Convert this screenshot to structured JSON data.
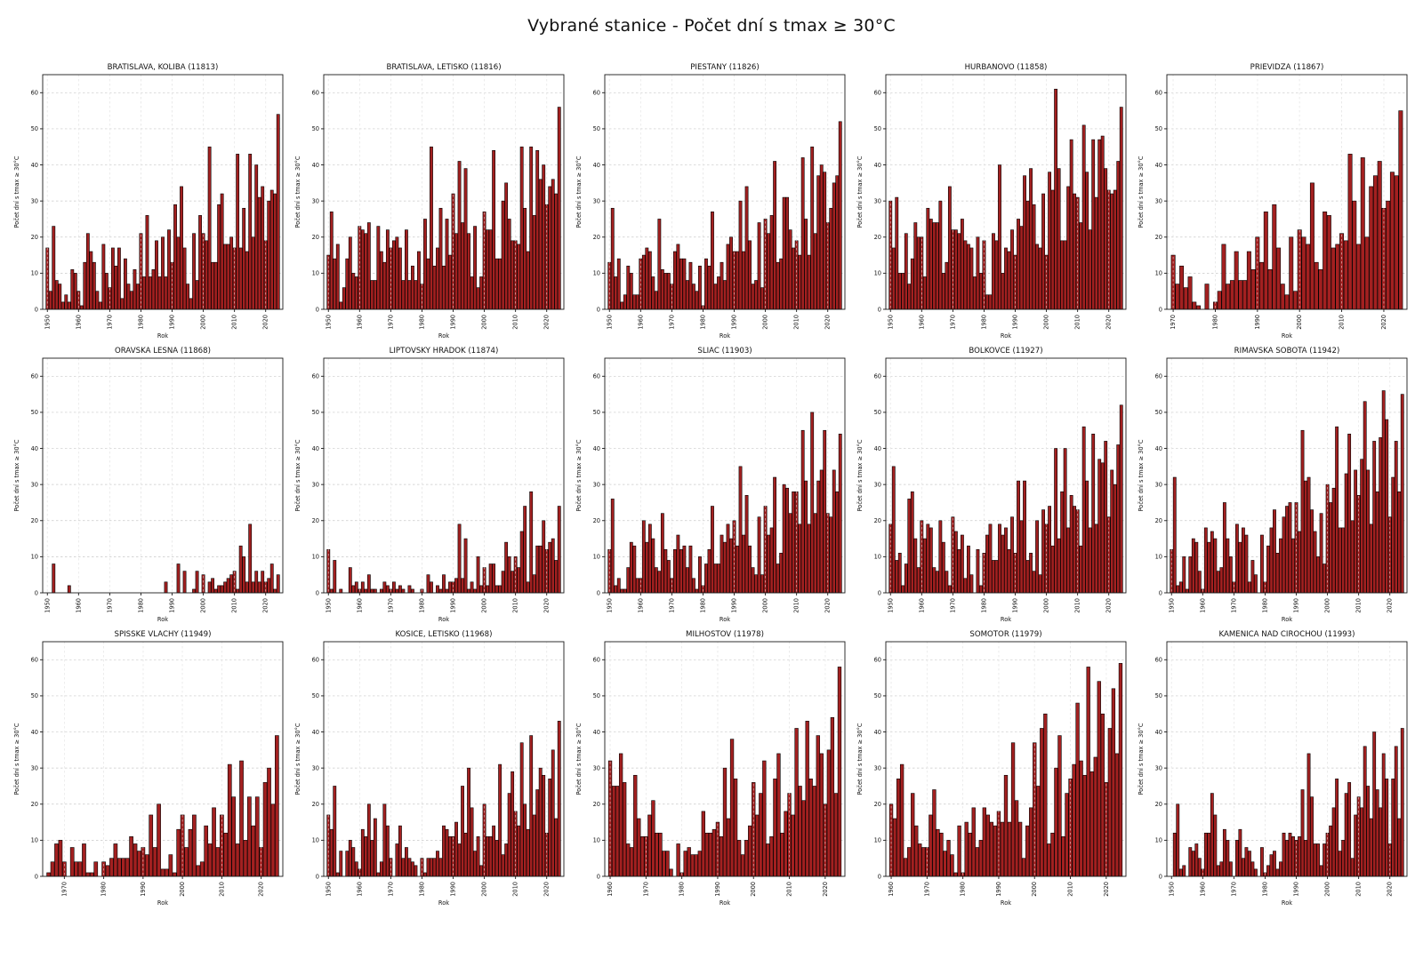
{
  "title": "Vybrané stanice - Počet dní s tmax ≥ 30°C",
  "chart_common": {
    "type": "bar",
    "xlabel": "Rok",
    "ylabel": "Počet dní s tmax ≥ 30°C",
    "yticks": [
      0,
      10,
      20,
      30,
      40,
      50,
      60
    ],
    "ylim": [
      0,
      65
    ],
    "grid": "dashed",
    "bar_color": "#a32020",
    "bar_edge_color": "#000000",
    "x_tick_step": 10,
    "x_tick_end": 2020
  },
  "chart_data": [
    {
      "type": "bar",
      "title": "BRATISLAVA, KOLIBA (11813)",
      "start_year": 1950,
      "values": [
        17,
        5,
        23,
        8,
        7,
        2,
        4,
        2,
        11,
        10,
        5,
        1,
        13,
        21,
        16,
        13,
        5,
        2,
        18,
        10,
        6,
        17,
        12,
        17,
        3,
        14,
        7,
        5,
        11,
        7,
        21,
        9,
        26,
        9,
        11,
        19,
        9,
        20,
        9,
        22,
        13,
        29,
        20,
        34,
        17,
        7,
        3,
        21,
        8,
        26,
        21,
        19,
        45,
        13,
        13,
        29,
        32,
        18,
        18,
        20,
        17,
        43,
        17,
        28,
        16,
        43,
        20,
        40,
        31,
        34,
        19,
        30,
        33,
        32,
        54
      ]
    },
    {
      "type": "bar",
      "title": "BRATISLAVA, LETISKO (11816)",
      "start_year": 1950,
      "values": [
        15,
        27,
        14,
        18,
        2,
        6,
        14,
        20,
        10,
        9,
        23,
        22,
        21,
        24,
        8,
        8,
        23,
        16,
        13,
        22,
        17,
        19,
        20,
        17,
        8,
        22,
        8,
        12,
        8,
        16,
        7,
        25,
        14,
        45,
        12,
        17,
        28,
        12,
        25,
        15,
        32,
        21,
        41,
        24,
        39,
        21,
        9,
        23,
        6,
        9,
        27,
        22,
        22,
        44,
        14,
        14,
        30,
        35,
        25,
        19,
        19,
        18,
        45,
        28,
        16,
        45,
        26,
        44,
        36,
        40,
        29,
        34,
        36,
        32,
        56
      ]
    },
    {
      "type": "bar",
      "title": "PIESTANY (11826)",
      "start_year": 1950,
      "values": [
        13,
        28,
        9,
        14,
        2,
        4,
        12,
        10,
        4,
        4,
        14,
        15,
        17,
        16,
        9,
        5,
        25,
        11,
        10,
        10,
        7,
        16,
        18,
        14,
        14,
        8,
        13,
        7,
        5,
        12,
        1,
        14,
        12,
        27,
        7,
        9,
        13,
        8,
        18,
        20,
        16,
        16,
        30,
        16,
        34,
        19,
        7,
        8,
        24,
        6,
        25,
        21,
        26,
        41,
        13,
        14,
        31,
        31,
        22,
        17,
        19,
        15,
        42,
        25,
        15,
        45,
        21,
        37,
        40,
        38,
        24,
        28,
        35,
        37,
        52
      ]
    },
    {
      "type": "bar",
      "title": "HURBANOVO (11858)",
      "start_year": 1950,
      "values": [
        30,
        17,
        31,
        10,
        10,
        21,
        7,
        14,
        24,
        20,
        20,
        9,
        28,
        25,
        24,
        24,
        30,
        10,
        13,
        34,
        22,
        22,
        21,
        25,
        19,
        18,
        17,
        9,
        20,
        10,
        19,
        4,
        4,
        21,
        19,
        40,
        10,
        17,
        16,
        22,
        15,
        25,
        23,
        37,
        30,
        39,
        29,
        18,
        17,
        32,
        15,
        38,
        33,
        61,
        39,
        19,
        19,
        34,
        47,
        32,
        31,
        24,
        51,
        38,
        22,
        47,
        31,
        47,
        48,
        39,
        33,
        32,
        33,
        41,
        56
      ]
    },
    {
      "type": "bar",
      "title": "PRIEVIDZA (11867)",
      "start_year": 1970,
      "values": [
        15,
        7,
        12,
        6,
        9,
        2,
        1,
        0,
        7,
        0,
        2,
        5,
        18,
        7,
        8,
        16,
        8,
        8,
        16,
        11,
        20,
        13,
        27,
        11,
        29,
        17,
        7,
        4,
        20,
        5,
        22,
        20,
        18,
        35,
        13,
        11,
        27,
        26,
        17,
        18,
        21,
        19,
        43,
        30,
        18,
        42,
        20,
        34,
        37,
        41,
        28,
        30,
        38,
        37,
        55
      ]
    },
    {
      "type": "bar",
      "title": "ORAVSKA LESNA (11868)",
      "start_year": 1950,
      "values": [
        0,
        0,
        8,
        0,
        0,
        0,
        0,
        2,
        0,
        0,
        0,
        0,
        0,
        0,
        0,
        0,
        0,
        0,
        0,
        0,
        0,
        0,
        0,
        0,
        0,
        0,
        0,
        0,
        0,
        0,
        0,
        0,
        0,
        0,
        0,
        0,
        0,
        0,
        3,
        0,
        0,
        0,
        8,
        0,
        6,
        0,
        0,
        1,
        6,
        0,
        5,
        0,
        3,
        4,
        1,
        2,
        2,
        3,
        4,
        5,
        6,
        1,
        13,
        10,
        3,
        19,
        3,
        6,
        3,
        6,
        3,
        4,
        8,
        1,
        5
      ]
    },
    {
      "type": "bar",
      "title": "LIPTOVSKY HRADOK (11874)",
      "start_year": 1950,
      "values": [
        12,
        1,
        9,
        0,
        1,
        0,
        0,
        7,
        2,
        3,
        1,
        3,
        1,
        5,
        1,
        1,
        0,
        1,
        3,
        2,
        1,
        3,
        1,
        2,
        1,
        0,
        2,
        1,
        0,
        0,
        1,
        0,
        5,
        3,
        0,
        2,
        1,
        5,
        1,
        3,
        3,
        4,
        19,
        4,
        15,
        1,
        3,
        1,
        10,
        2,
        7,
        2,
        8,
        8,
        2,
        2,
        6,
        14,
        10,
        6,
        10,
        7,
        17,
        24,
        3,
        28,
        5,
        13,
        13,
        20,
        12,
        14,
        15,
        9,
        24
      ]
    },
    {
      "type": "bar",
      "title": "SLIAC (11903)",
      "start_year": 1950,
      "values": [
        12,
        26,
        2,
        4,
        1,
        1,
        7,
        14,
        13,
        4,
        4,
        20,
        14,
        19,
        15,
        7,
        6,
        22,
        12,
        9,
        4,
        12,
        16,
        12,
        13,
        7,
        13,
        4,
        1,
        10,
        2,
        8,
        12,
        24,
        8,
        8,
        16,
        14,
        19,
        15,
        20,
        13,
        35,
        16,
        27,
        13,
        7,
        5,
        21,
        5,
        24,
        16,
        18,
        32,
        8,
        11,
        30,
        29,
        22,
        28,
        28,
        19,
        45,
        31,
        19,
        50,
        22,
        31,
        34,
        45,
        22,
        21,
        34,
        28,
        44
      ]
    },
    {
      "type": "bar",
      "title": "BOLKOVCE (11927)",
      "start_year": 1950,
      "values": [
        19,
        35,
        9,
        11,
        2,
        8,
        26,
        28,
        15,
        7,
        20,
        15,
        19,
        18,
        7,
        6,
        20,
        14,
        6,
        2,
        21,
        17,
        12,
        16,
        4,
        13,
        5,
        0,
        12,
        2,
        11,
        16,
        19,
        9,
        9,
        19,
        16,
        18,
        12,
        21,
        11,
        31,
        20,
        31,
        9,
        11,
        6,
        20,
        5,
        23,
        19,
        24,
        13,
        40,
        15,
        28,
        40,
        18,
        27,
        24,
        23,
        13,
        46,
        31,
        18,
        44,
        19,
        37,
        36,
        42,
        21,
        34,
        30,
        41,
        52
      ]
    },
    {
      "type": "bar",
      "title": "RIMAVSKA SOBOTA (11942)",
      "start_year": 1950,
      "values": [
        12,
        32,
        2,
        3,
        10,
        1,
        10,
        15,
        14,
        6,
        1,
        18,
        14,
        17,
        15,
        6,
        7,
        25,
        15,
        10,
        3,
        19,
        14,
        18,
        16,
        3,
        9,
        5,
        0,
        16,
        3,
        13,
        18,
        23,
        11,
        15,
        21,
        24,
        25,
        15,
        25,
        17,
        45,
        31,
        32,
        23,
        17,
        10,
        22,
        8,
        30,
        25,
        29,
        46,
        18,
        18,
        33,
        44,
        20,
        34,
        27,
        37,
        53,
        34,
        19,
        42,
        28,
        43,
        56,
        48,
        21,
        32,
        42,
        28,
        55
      ]
    },
    {
      "type": "bar",
      "title": "SPISSKE VLACHY (11949)",
      "start_year": 1966,
      "values": [
        1,
        4,
        9,
        10,
        4,
        0,
        8,
        4,
        4,
        9,
        1,
        1,
        4,
        0,
        4,
        3,
        5,
        9,
        5,
        5,
        5,
        11,
        9,
        7,
        8,
        6,
        17,
        8,
        20,
        2,
        2,
        6,
        1,
        13,
        17,
        8,
        13,
        17,
        3,
        4,
        14,
        9,
        19,
        8,
        17,
        12,
        31,
        22,
        9,
        32,
        10,
        22,
        14,
        22,
        8,
        26,
        30,
        20,
        39
      ]
    },
    {
      "type": "bar",
      "title": "KOSICE, LETISKO (11968)",
      "start_year": 1950,
      "values": [
        17,
        13,
        25,
        1,
        7,
        0,
        7,
        10,
        8,
        4,
        2,
        13,
        11,
        20,
        10,
        16,
        1,
        4,
        20,
        14,
        5,
        0,
        9,
        14,
        5,
        8,
        5,
        4,
        3,
        0,
        5,
        1,
        5,
        5,
        5,
        7,
        5,
        14,
        13,
        11,
        11,
        15,
        9,
        25,
        12,
        30,
        19,
        7,
        11,
        3,
        20,
        11,
        11,
        14,
        10,
        31,
        6,
        9,
        23,
        29,
        18,
        14,
        37,
        20,
        13,
        39,
        17,
        24,
        30,
        28,
        12,
        27,
        35,
        16,
        43
      ]
    },
    {
      "type": "bar",
      "title": "MILHOSTOV (11978)",
      "start_year": 1960,
      "values": [
        32,
        25,
        25,
        34,
        26,
        9,
        8,
        28,
        16,
        11,
        11,
        17,
        21,
        12,
        12,
        7,
        7,
        2,
        0,
        9,
        1,
        7,
        8,
        6,
        6,
        7,
        18,
        12,
        12,
        13,
        15,
        11,
        30,
        16,
        38,
        27,
        10,
        6,
        10,
        14,
        26,
        17,
        23,
        32,
        9,
        11,
        27,
        34,
        12,
        18,
        23,
        17,
        41,
        25,
        21,
        43,
        27,
        25,
        39,
        34,
        20,
        35,
        44,
        23,
        58
      ]
    },
    {
      "type": "bar",
      "title": "SOMOTOR (11979)",
      "start_year": 1960,
      "values": [
        20,
        16,
        27,
        31,
        5,
        8,
        23,
        14,
        9,
        8,
        8,
        17,
        24,
        13,
        12,
        7,
        10,
        6,
        1,
        14,
        1,
        15,
        12,
        19,
        8,
        10,
        19,
        17,
        15,
        14,
        18,
        15,
        28,
        15,
        37,
        21,
        15,
        5,
        14,
        19,
        37,
        25,
        41,
        45,
        9,
        12,
        30,
        39,
        11,
        23,
        27,
        31,
        48,
        32,
        28,
        58,
        29,
        33,
        54,
        45,
        26,
        41,
        52,
        34,
        59
      ]
    },
    {
      "type": "bar",
      "title": "KAMENICA NAD CIROCHOU (11993)",
      "start_year": 1950,
      "values": [
        0,
        12,
        20,
        2,
        3,
        0,
        8,
        7,
        9,
        5,
        2,
        12,
        12,
        23,
        17,
        3,
        4,
        13,
        10,
        4,
        0,
        10,
        13,
        5,
        8,
        7,
        4,
        2,
        0,
        8,
        1,
        3,
        6,
        7,
        2,
        4,
        12,
        10,
        12,
        11,
        10,
        11,
        24,
        10,
        34,
        22,
        9,
        9,
        3,
        9,
        12,
        14,
        19,
        27,
        7,
        10,
        23,
        26,
        5,
        17,
        22,
        19,
        36,
        25,
        16,
        40,
        24,
        19,
        34,
        27,
        9,
        27,
        36,
        16,
        41
      ]
    }
  ]
}
